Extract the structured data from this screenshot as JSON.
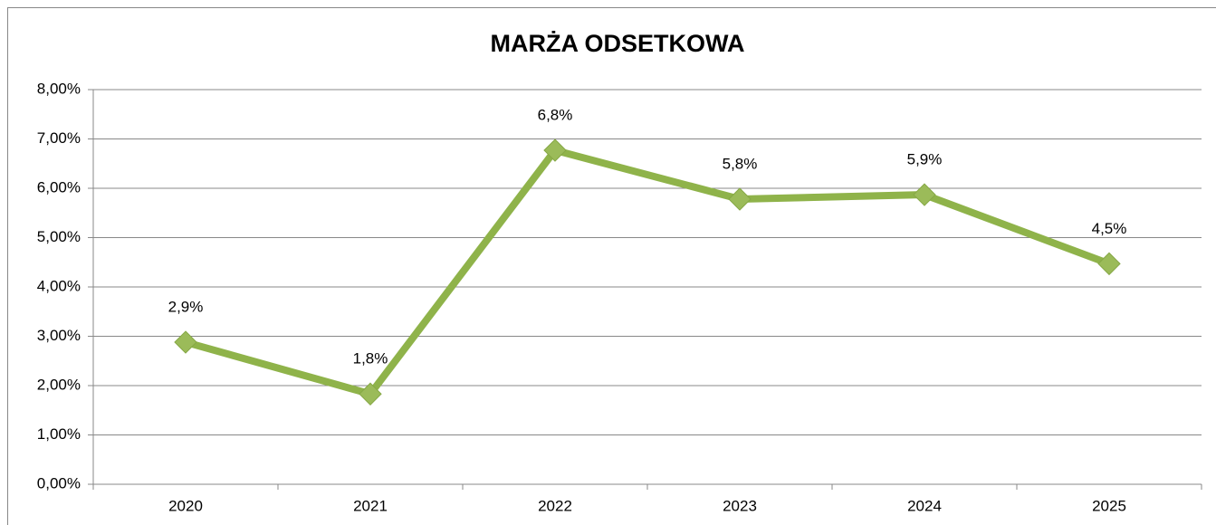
{
  "chart_data": {
    "type": "line",
    "title": "MARŻA ODSETKOWA",
    "categories": [
      "2020",
      "2021",
      "2022",
      "2023",
      "2024",
      "2025"
    ],
    "series": [
      {
        "name": "Marża odsetkowa",
        "color": "#8fb34a",
        "values": [
          2.88,
          1.83,
          6.77,
          5.78,
          5.87,
          4.47
        ],
        "value_labels": [
          "2,9%",
          "1,8%",
          "6,8%",
          "5,8%",
          "5,9%",
          "4,5%"
        ]
      }
    ],
    "ylim": [
      0,
      8
    ],
    "yticks": [
      {
        "value": 0,
        "label": "0,00%"
      },
      {
        "value": 1,
        "label": "1,00%"
      },
      {
        "value": 2,
        "label": "2,00%"
      },
      {
        "value": 3,
        "label": "3,00%"
      },
      {
        "value": 4,
        "label": "4,00%"
      },
      {
        "value": 5,
        "label": "5,00%"
      },
      {
        "value": 6,
        "label": "6,00%"
      },
      {
        "value": 7,
        "label": "7,00%"
      },
      {
        "value": 8,
        "label": "8,00%"
      }
    ],
    "grid": true
  }
}
